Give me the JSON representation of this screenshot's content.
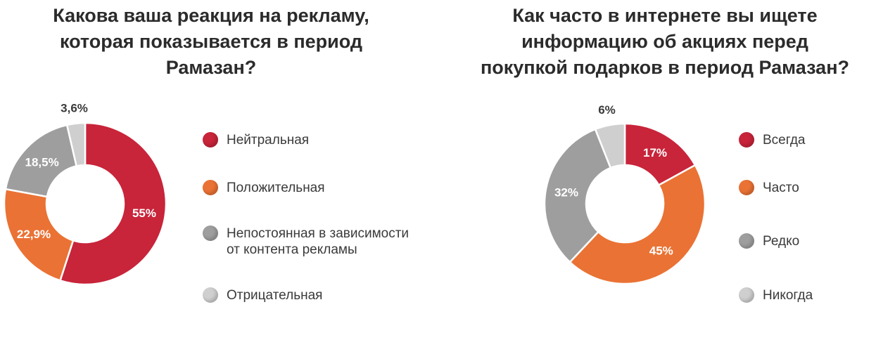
{
  "chart_data": [
    {
      "type": "pie",
      "title": "Какова ваша реакция на рекламу, которая показывается в период Рамазан?",
      "title_lines": [
        "Какова ваша реакция на рекламу,",
        "которая показывается в период",
        "Рамазан?"
      ],
      "categories": [
        "Нейтральная",
        "Положительная",
        "Непостоянная в зависимости от контента рекламы",
        "Отрицательная"
      ],
      "legend_lines": [
        [
          "Нейтральная"
        ],
        [
          "Положительная"
        ],
        [
          "Непостоянная в зависимости",
          "от контента рекламы"
        ],
        [
          "Отрицательная"
        ]
      ],
      "values": [
        55,
        22.9,
        18.5,
        3.6
      ],
      "value_labels": [
        "55%",
        "22,9%",
        "18,5%",
        "3,6%"
      ],
      "colors": [
        "#c8243a",
        "#ea7234",
        "#9e9e9e",
        "#cfcfcf"
      ],
      "legend_position": "right"
    },
    {
      "type": "pie",
      "title": "Как часто в интернете вы ищете информацию об акциях перед покупкой подарков в период Рамазан?",
      "title_lines": [
        "Как часто в интернете вы ищете",
        "информацию об акциях перед",
        "покупкой подарков в период Рамазан?"
      ],
      "categories": [
        "Всегда",
        "Часто",
        "Редко",
        "Никогда"
      ],
      "legend_lines": [
        [
          "Всегда"
        ],
        [
          "Часто"
        ],
        [
          "Редко"
        ],
        [
          "Никогда"
        ]
      ],
      "values": [
        17,
        45,
        32,
        6
      ],
      "value_labels": [
        "17%",
        "45%",
        "32%",
        "6%"
      ],
      "colors": [
        "#c8243a",
        "#ea7234",
        "#9e9e9e",
        "#cfcfcf"
      ],
      "legend_position": "right"
    }
  ]
}
